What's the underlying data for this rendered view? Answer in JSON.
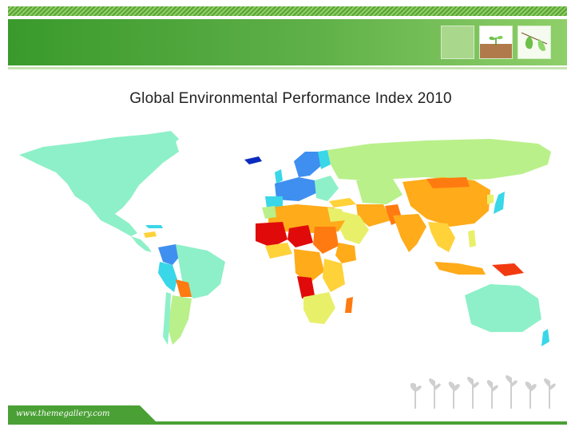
{
  "slide": {
    "title": "Global Environmental Performance Index 2010",
    "footer_url": "www.themegallery.com"
  },
  "colors": {
    "header_green": "#3a9a2c",
    "header_light": "#8fcf6a",
    "epi_scale": [
      "#0b2bbf",
      "#3f8ff0",
      "#39d7e8",
      "#8ef0c8",
      "#b9f08a",
      "#e8f06a",
      "#ffd23a",
      "#ffab1a",
      "#ff7a10",
      "#f23a10",
      "#e00a0a"
    ]
  },
  "icons": {
    "thumb_1": "plain-green-tile",
    "thumb_2": "sprout-in-soil-icon",
    "thumb_3": "green-leaves-icon",
    "decoration": "sprout-silhouettes"
  }
}
